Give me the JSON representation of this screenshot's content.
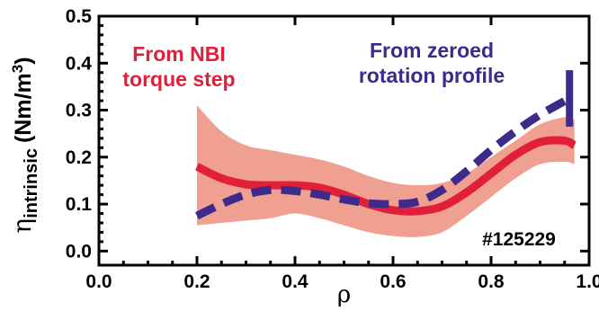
{
  "chart_data": {
    "type": "line",
    "xlabel": "ρ",
    "ylabel": {
      "symbol": "η",
      "subscript": "intrinsic",
      "units_pre": "(Nm/m",
      "units_sup": "3",
      "units_post": ")"
    },
    "xlim": [
      0.0,
      1.0
    ],
    "ylim": [
      -0.03,
      0.5
    ],
    "xticks": [
      "0.0",
      "0.2",
      "0.4",
      "0.6",
      "0.8",
      "1.0"
    ],
    "yticks": [
      "0.0",
      "0.1",
      "0.2",
      "0.3",
      "0.4",
      "0.5"
    ],
    "grid": false,
    "series": [
      {
        "name": "From NBI torque step",
        "color": "#e0203a",
        "style": "solid",
        "x": [
          0.2,
          0.25,
          0.3,
          0.35,
          0.4,
          0.45,
          0.5,
          0.55,
          0.6,
          0.65,
          0.7,
          0.75,
          0.8,
          0.85,
          0.9,
          0.95,
          0.97
        ],
        "y": [
          0.18,
          0.155,
          0.142,
          0.14,
          0.14,
          0.135,
          0.12,
          0.1,
          0.087,
          0.085,
          0.095,
          0.125,
          0.165,
          0.205,
          0.232,
          0.235,
          0.225
        ],
        "band": {
          "color": "#f0a090",
          "upper": [
            0.31,
            0.255,
            0.225,
            0.215,
            0.205,
            0.195,
            0.18,
            0.16,
            0.145,
            0.14,
            0.145,
            0.165,
            0.2,
            0.235,
            0.27,
            0.285,
            0.28
          ],
          "lower": [
            0.055,
            0.06,
            0.065,
            0.07,
            0.08,
            0.07,
            0.055,
            0.04,
            0.032,
            0.03,
            0.04,
            0.075,
            0.115,
            0.155,
            0.185,
            0.19,
            0.185
          ]
        }
      },
      {
        "name": "From zeroed rotation profile",
        "color": "#3d2a8a",
        "style": "dashed",
        "x": [
          0.2,
          0.25,
          0.3,
          0.35,
          0.4,
          0.45,
          0.5,
          0.55,
          0.6,
          0.65,
          0.7,
          0.75,
          0.8,
          0.85,
          0.9,
          0.96
        ],
        "y": [
          0.075,
          0.1,
          0.12,
          0.13,
          0.128,
          0.12,
          0.11,
          0.102,
          0.1,
          0.105,
          0.13,
          0.17,
          0.215,
          0.255,
          0.29,
          0.325
        ],
        "errorbar": {
          "x": 0.96,
          "low": 0.265,
          "high": 0.385
        }
      }
    ],
    "annotations": [
      {
        "lines": [
          "From NBI",
          "torque step"
        ],
        "color": "#e0203a"
      },
      {
        "lines": [
          "From zeroed",
          "rotation profile"
        ],
        "color": "#3d2a8a"
      },
      {
        "lines": [
          "#125229"
        ],
        "color": "#000000"
      }
    ]
  }
}
